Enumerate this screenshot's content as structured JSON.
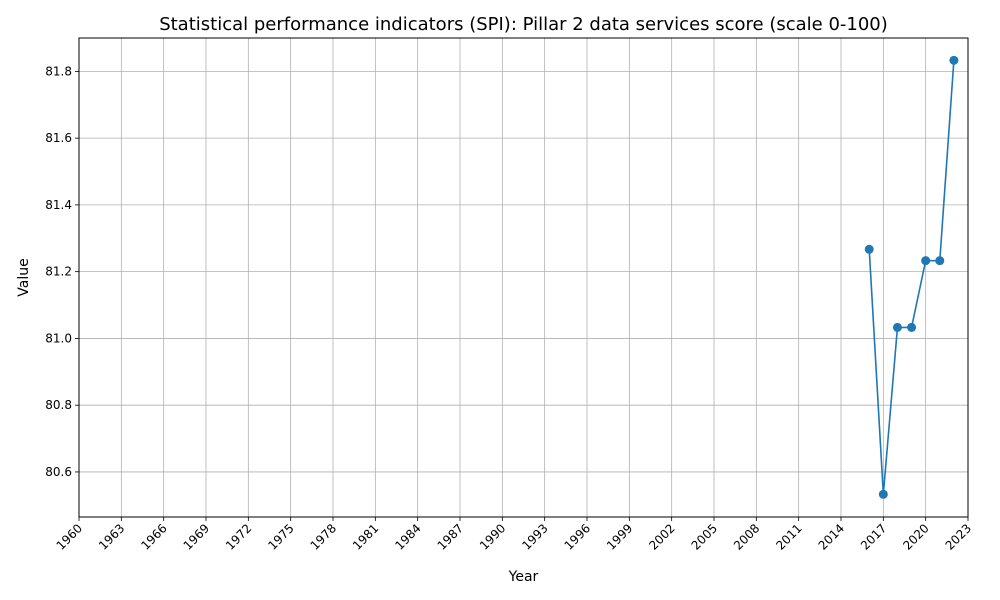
{
  "chart_data": {
    "type": "line",
    "title": "Statistical performance indicators (SPI): Pillar 2 data services score (scale 0-100)",
    "xlabel": "Year",
    "ylabel": "Value",
    "xlim": [
      1960,
      2023
    ],
    "ylim": [
      80.465,
      81.9
    ],
    "x_ticks": [
      1960,
      1963,
      1966,
      1969,
      1972,
      1975,
      1978,
      1981,
      1984,
      1987,
      1990,
      1993,
      1996,
      1999,
      2002,
      2005,
      2008,
      2011,
      2014,
      2017,
      2020,
      2023
    ],
    "y_ticks": [
      80.6,
      80.8,
      81.0,
      81.2,
      81.4,
      81.6,
      81.8
    ],
    "y_tick_labels": [
      "80.6",
      "80.8",
      "81.0",
      "81.2",
      "81.4",
      "81.6",
      "81.8"
    ],
    "grid": true,
    "line_color": "#1f77b4",
    "series": [
      {
        "x": [
          2016,
          2017,
          2018,
          2019,
          2020,
          2021,
          2022
        ],
        "values": [
          81.267,
          80.533,
          81.033,
          81.033,
          81.233,
          81.233,
          81.833
        ]
      }
    ]
  }
}
